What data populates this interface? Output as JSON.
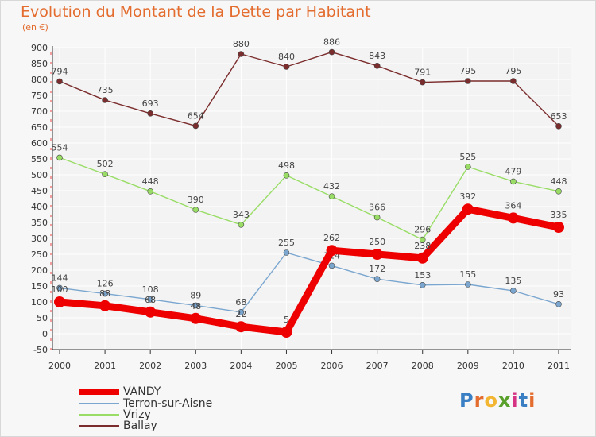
{
  "page": {
    "title": "Evolution du Montant de la Dette par Habitant",
    "subtitle": "(en €)",
    "logo_text": "Proxiti"
  },
  "colors": {
    "title": "#e36c2e",
    "grid": "#ffffff",
    "plot_bg": "#f7f7f7",
    "axis_text": "#333333",
    "label_text": "#555555"
  },
  "chart_data": {
    "type": "line",
    "title": "Evolution du Montant de la Dette par Habitant",
    "subtitle": "(en €)",
    "xlabel": "",
    "ylabel": "",
    "x": [
      "2000",
      "2001",
      "2002",
      "2003",
      "2004",
      "2005",
      "2006",
      "2007",
      "2008",
      "2009",
      "2010",
      "2011"
    ],
    "ylim": [
      -50,
      900
    ],
    "yticks": [
      -50,
      0,
      50,
      100,
      150,
      200,
      250,
      300,
      350,
      400,
      450,
      500,
      550,
      600,
      650,
      700,
      750,
      800,
      850,
      900
    ],
    "grid": true,
    "legend_position": "bottom-left",
    "series": [
      {
        "name": "VANDY",
        "color": "#ee0000",
        "values": [
          100,
          88,
          68,
          48,
          22,
          5,
          262,
          250,
          238,
          392,
          364,
          335
        ]
      },
      {
        "name": "Terron-sur-Aisne",
        "color": "#7aa6cf",
        "values": [
          144,
          126,
          108,
          89,
          68,
          255,
          214,
          172,
          153,
          155,
          135,
          93
        ]
      },
      {
        "name": "Vrizy",
        "color": "#99dd66",
        "values": [
          554,
          502,
          448,
          390,
          343,
          498,
          432,
          366,
          296,
          525,
          479,
          448
        ]
      },
      {
        "name": "Ballay",
        "color": "#7b2c2c",
        "values": [
          794,
          735,
          693,
          654,
          880,
          840,
          886,
          843,
          791,
          795,
          795,
          653
        ]
      }
    ]
  }
}
